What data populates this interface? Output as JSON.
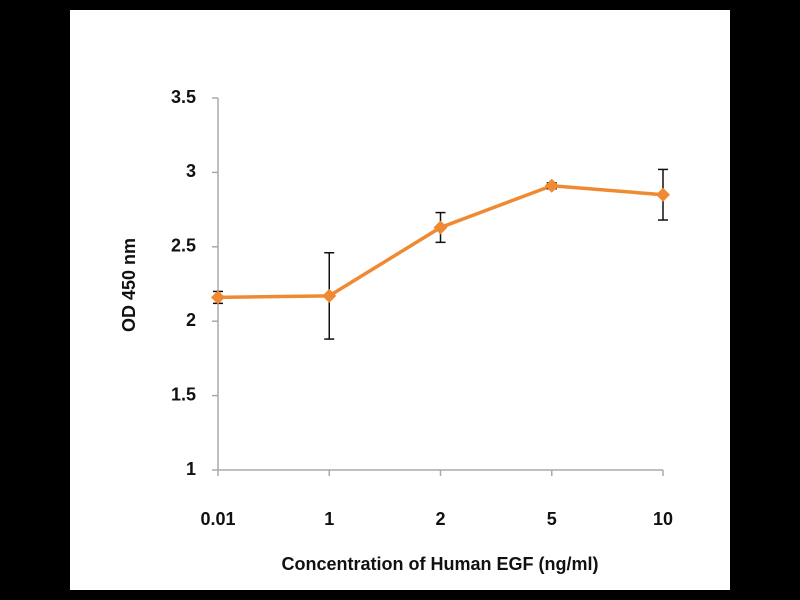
{
  "chart_data": {
    "type": "line",
    "x_label": "Concentration of Human EGF (ng/ml)",
    "y_label": "OD  450 nm",
    "categories": [
      "0.01",
      "1",
      "2",
      "5",
      "10"
    ],
    "series": [
      {
        "color": "#f08a32",
        "values": [
          2.16,
          2.17,
          2.63,
          2.91,
          2.85
        ],
        "errors": [
          0.04,
          0.29,
          0.1,
          0.02,
          0.17
        ]
      }
    ],
    "ylim": [
      1,
      3.5
    ],
    "yticks": [
      1,
      1.5,
      2,
      2.5,
      3,
      3.5
    ]
  }
}
